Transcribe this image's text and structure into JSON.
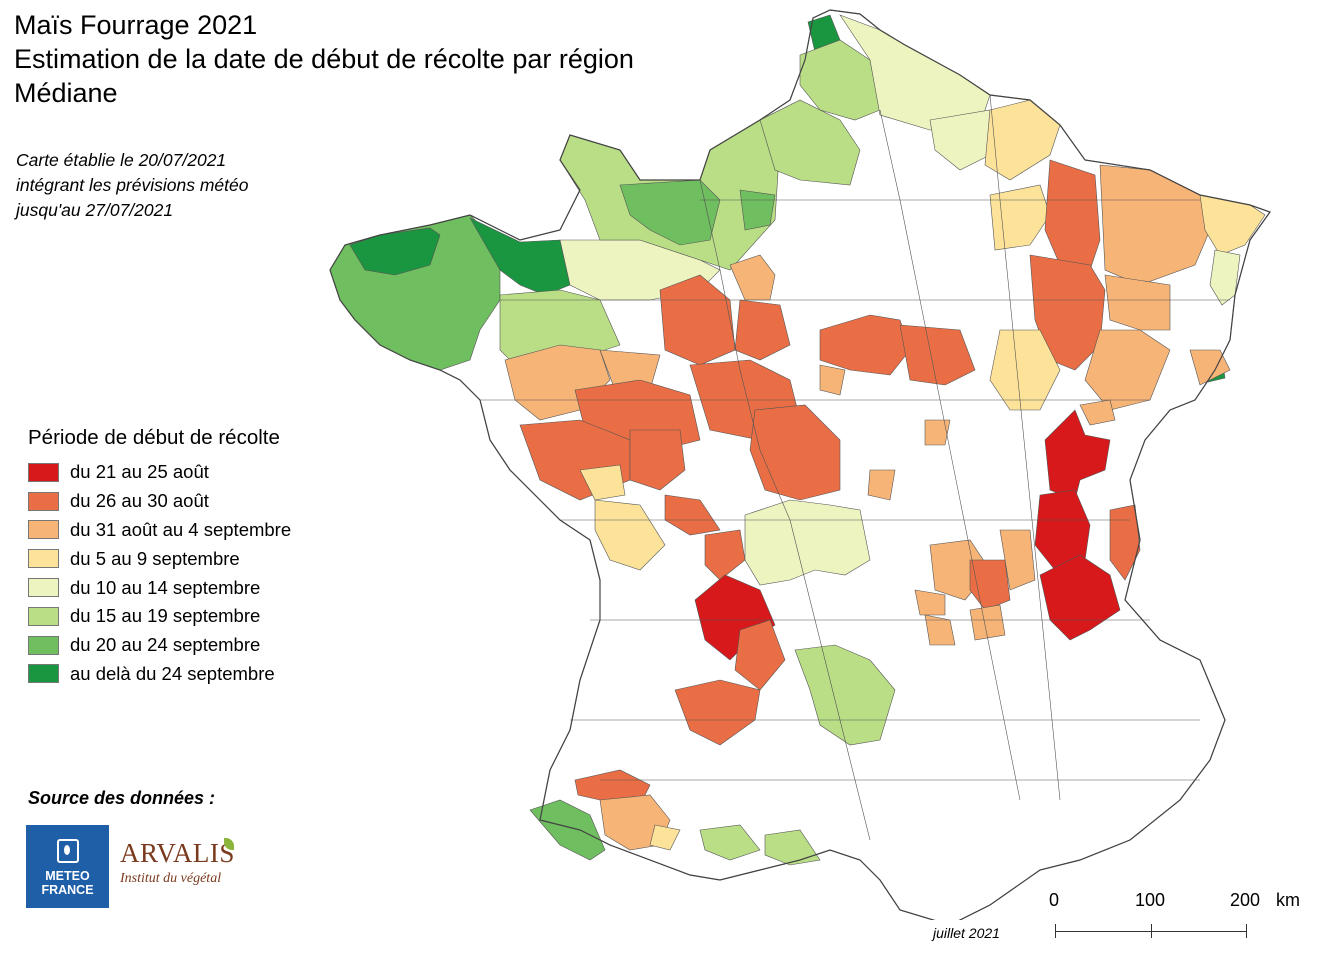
{
  "title": {
    "line1": "Maïs Fourrage 2021",
    "line2": "Estimation de la date de début de récolte par région",
    "line3": "Médiane"
  },
  "note": {
    "line1": "Carte établie le 20/07/2021",
    "line2": "intégrant les prévisions météo",
    "line3": "jusqu'au 27/07/2021"
  },
  "legend": {
    "title": "Période de début de récolte",
    "items": [
      {
        "label": "du 21 au 25 août",
        "color": "#d7191c"
      },
      {
        "label": "du 26 au 30 août",
        "color": "#ea6e45"
      },
      {
        "label": "du 31 août au 4 septembre",
        "color": "#f7b477"
      },
      {
        "label": "du 5 au 9 septembre",
        "color": "#fde39a"
      },
      {
        "label": "du 10 au 14 septembre",
        "color": "#edf4c0"
      },
      {
        "label": "du 15 au 19 septembre",
        "color": "#b9de86"
      },
      {
        "label": "du 20 au 24 septembre",
        "color": "#6fbe5f"
      },
      {
        "label": "au delà du 24 septembre",
        "color": "#1a9641"
      }
    ]
  },
  "source": {
    "label": "Source des données :",
    "meteo_france_line1": "METEO",
    "meteo_france_line2": "FRANCE",
    "arvalis_name": "ARVALIS",
    "arvalis_subtitle": "Institut du végétal"
  },
  "date_note": "juillet 2021",
  "scale_bar": {
    "labels": [
      "0",
      "100",
      "200"
    ],
    "unit": "km"
  },
  "map": {
    "outline_color": "#555555",
    "no_data_color": "#ffffff"
  }
}
